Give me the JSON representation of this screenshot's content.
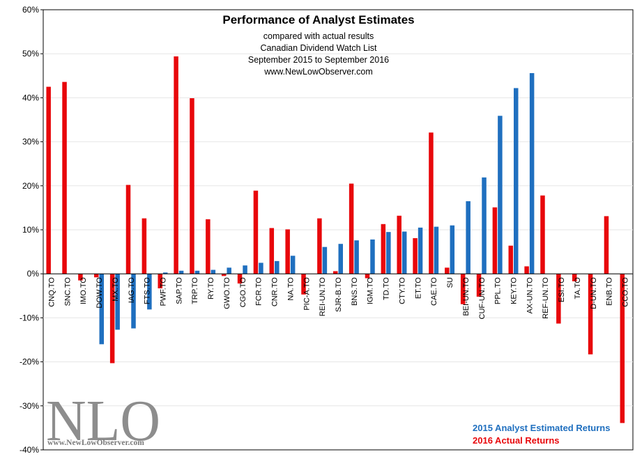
{
  "chart_data": {
    "type": "bar",
    "title": "Performance of Analyst Estimates",
    "subtitle_lines": [
      "compared with actual results",
      "Canadian Dividend Watch List",
      "September 2015 to September 2016",
      "www.NewLowObserver.com"
    ],
    "categories": [
      "CNQ.TO",
      "SNC.TO",
      "IMO.TO",
      "DOW.TO",
      "MX.TO",
      "IAG.TO",
      "FTS.TO",
      "PWF.TO",
      "SAP.TO",
      "TRP.TO",
      "RY.TO",
      "GWO.TO",
      "CGO.TO",
      "FCR.TO",
      "CNR.TO",
      "NA.TO",
      "PIC-A.TO",
      "REI-UN.TO",
      "SJR-B.TO",
      "BNS.TO",
      "IGM.TO",
      "TD.TO",
      "CTY.TO",
      "ET.TO",
      "CAE.TO",
      "SU",
      "BEI-UN.TO",
      "CUF-UN.TO",
      "PPL.TO",
      "KEY.TO",
      "AX-UN.TO",
      "REF-UN.TO",
      "ESI.TO",
      "TA.TO",
      "D-UN.TO",
      "ENB.TO",
      "CCO.TO"
    ],
    "series": [
      {
        "name": "2016 Actual Returns",
        "color": "#e8070b",
        "values": [
          42.5,
          43.6,
          -1.5,
          -0.8,
          -20.3,
          20.2,
          12.6,
          -3.3,
          49.4,
          39.9,
          12.4,
          -0.5,
          -2.2,
          18.9,
          10.4,
          10.1,
          -4.7,
          12.6,
          0.6,
          20.5,
          -1.0,
          11.3,
          13.2,
          8.1,
          32.1,
          1.4,
          -6.9,
          -5.2,
          15.1,
          6.4,
          1.7,
          17.8,
          -11.3,
          -1.7,
          -18.3,
          13.1,
          -33.9
        ]
      },
      {
        "name": "2015 Analyst Estimated Returns",
        "color": "#1f6fbf",
        "values": [
          null,
          null,
          null,
          -16.0,
          -12.7,
          -12.4,
          -8.1,
          0.3,
          0.7,
          0.7,
          0.9,
          1.4,
          1.9,
          2.5,
          2.9,
          4.1,
          null,
          6.1,
          6.8,
          7.6,
          7.8,
          9.5,
          9.6,
          10.5,
          10.7,
          11.0,
          16.5,
          21.9,
          35.9,
          42.2,
          45.6,
          null,
          null,
          null,
          null,
          null,
          null
        ]
      }
    ],
    "ylim": [
      -40,
      60
    ],
    "yticks": [
      -40,
      -30,
      -20,
      -10,
      0,
      10,
      20,
      30,
      40,
      50,
      60
    ],
    "ytick_labels": [
      "-40%",
      "-30%",
      "-20%",
      "-10%",
      "0%",
      "10%",
      "20%",
      "30%",
      "40%",
      "50%",
      "60%"
    ],
    "legend": {
      "blue_label": "2015  Analyst Estimated Returns",
      "red_label": "2016  Actual Returns",
      "position": "bottom-right"
    },
    "xlabel": "",
    "ylabel": ""
  },
  "watermark": {
    "logo_text": "NLO",
    "url_text": "www.NewLowObserver.com"
  }
}
